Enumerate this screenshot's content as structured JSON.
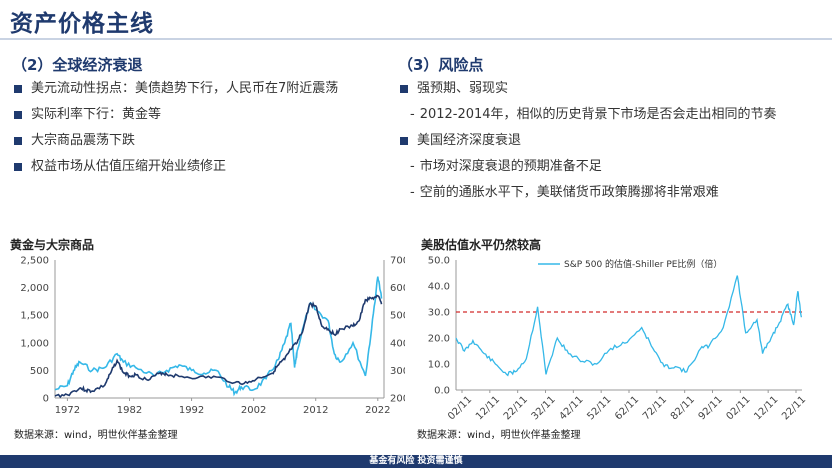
{
  "page": {
    "title": "资产价格主线",
    "footer": "基金有风险  投资需谨慎"
  },
  "left_section": {
    "heading": "（2）全球经济衰退",
    "bullets": [
      "美元流动性拐点：美债趋势下行，人民币在7附近震荡",
      "实际利率下行：黄金等",
      "大宗商品震荡下跌",
      "权益市场从估值压缩开始业绩修正"
    ]
  },
  "right_section": {
    "heading": "（3）风险点",
    "bullets": [
      {
        "level": 1,
        "text": "强预期、弱现实"
      },
      {
        "level": 2,
        "text": "2012-2014年，相似的历史背景下市场是否会走出相同的节奏"
      },
      {
        "level": 1,
        "text": "美国经济深度衰退"
      },
      {
        "level": 2,
        "text": "市场对深度衰退的预期准备不足"
      },
      {
        "level": 2,
        "text": "空前的通胀水平下，美联储货币政策腾挪将非常艰难"
      }
    ]
  },
  "chart_left": {
    "title": "黄金与大宗商品",
    "source": "数据来源：wind，明世伙伴基金整理"
  },
  "chart_right": {
    "title": "美股估值水平仍然较高",
    "source": "数据来源：wind，明世伙伴基金整理"
  },
  "chart_data": [
    {
      "type": "line",
      "title": "黄金与大宗商品",
      "x_ticks": [
        "1972",
        "1982",
        "1992",
        "2002",
        "2012",
        "2022"
      ],
      "xlim": [
        1970,
        2023
      ],
      "y_left": {
        "ticks": [
          "2,500",
          "2,000",
          "1,500",
          "1,000",
          "500",
          "0"
        ],
        "lim": [
          0,
          2500
        ]
      },
      "y_right": {
        "ticks": [
          "700",
          "600",
          "500",
          "400",
          "300",
          "200"
        ],
        "lim": [
          200,
          700
        ]
      },
      "grid": false,
      "series": [
        {
          "axis": "left",
          "color": "#1f3a6e",
          "x": [
            1970,
            1972,
            1974,
            1975,
            1976,
            1978,
            1979,
            1980,
            1981,
            1982,
            1983,
            1985,
            1987,
            1988,
            1990,
            1993,
            1996,
            1999,
            2001,
            2003,
            2005,
            2006,
            2007,
            2008,
            2009,
            2010,
            2011,
            2012,
            2013,
            2014,
            2015,
            2016,
            2018,
            2019,
            2020,
            2021,
            2022,
            2022.6
          ],
          "y": [
            36,
            60,
            180,
            140,
            125,
            230,
            460,
            680,
            460,
            400,
            420,
            320,
            460,
            430,
            390,
            370,
            380,
            280,
            270,
            370,
            450,
            600,
            700,
            880,
            1000,
            1250,
            1700,
            1670,
            1300,
            1250,
            1150,
            1250,
            1300,
            1400,
            1780,
            1800,
            1850,
            1700
          ]
        },
        {
          "axis": "right",
          "color": "#35b8e8",
          "x": [
            1970,
            1972,
            1973,
            1974,
            1976,
            1978,
            1980,
            1981,
            1983,
            1986,
            1988,
            1990,
            1992,
            1994,
            1996,
            1998,
            1999,
            2000,
            2002,
            2004,
            2006,
            2007,
            2008,
            2008.6,
            2009,
            2011,
            2012,
            2014,
            2015,
            2016,
            2018,
            2020,
            2021,
            2022,
            2022.6
          ],
          "y": [
            230,
            245,
            300,
            330,
            300,
            310,
            360,
            330,
            310,
            280,
            300,
            320,
            300,
            290,
            300,
            240,
            220,
            240,
            230,
            270,
            340,
            400,
            470,
            310,
            370,
            540,
            520,
            480,
            360,
            330,
            400,
            280,
            450,
            640,
            560
          ]
        }
      ]
    },
    {
      "type": "line",
      "title": "美股估值水平仍然较高",
      "x_ticks": [
        "02/11",
        "12/11",
        "22/11",
        "32/11",
        "42/11",
        "52/11",
        "62/11",
        "72/11",
        "82/11",
        "92/11",
        "02/11",
        "12/11",
        "22/11"
      ],
      "y": {
        "ticks": [
          "50.0",
          "40.0",
          "30.0",
          "20.0",
          "10.0",
          "0.0"
        ],
        "lim": [
          0,
          50
        ]
      },
      "grid": false,
      "reference_line": {
        "y": 30,
        "color": "#d22a2a",
        "style": "dashed"
      },
      "series": [
        {
          "name": "S&P 500 的估值-Shiller PE比例（倍）",
          "color": "#35b8e8",
          "x": [
            1900,
            1903,
            1906,
            1910,
            1914,
            1918,
            1921,
            1925,
            1929,
            1932,
            1936,
            1940,
            1945,
            1950,
            1955,
            1960,
            1966,
            1970,
            1974,
            1978,
            1982,
            1987,
            1990,
            1995,
            2000,
            2003,
            2007,
            2009,
            2012,
            2015,
            2018,
            2020,
            2021.5,
            2022.8
          ],
          "y": [
            20,
            15,
            19,
            14,
            10,
            6,
            7,
            12,
            32,
            6,
            20,
            14,
            11,
            10,
            16,
            18,
            24,
            16,
            9,
            9,
            7,
            16,
            17,
            24,
            44,
            22,
            27,
            14,
            20,
            26,
            33,
            25,
            38,
            28
          ]
        }
      ]
    }
  ]
}
